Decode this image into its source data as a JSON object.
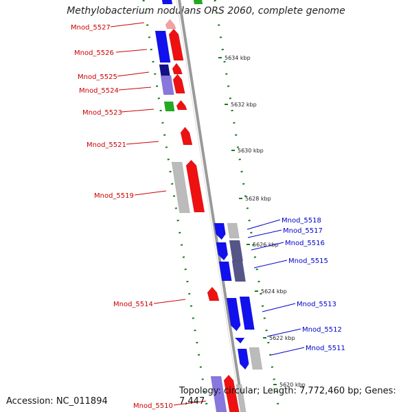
{
  "title": "Methylobacterium nodulans ORS 2060, complete genome",
  "accession": "Accession: NC_011894",
  "topology": "Topology: circular; Length: 7,772,460 bp; Genes: 7,447",
  "colors": {
    "forward_label": "#cc0000",
    "reverse_label": "#0000cc",
    "red": "#ee1111",
    "blue": "#1111ee",
    "gray": "#bbbbbb",
    "green": "#22aa22",
    "lavender": "#8877dd",
    "navy": "#111188",
    "slate": "#555588",
    "pink": "#f4a0a0",
    "dotted_ring": "#1a7a1a",
    "backbone": "#999999"
  },
  "scale_labels": [
    "5634 kbp",
    "5632 kbp",
    "5630 kbp",
    "5628 kbp",
    "5626 kbp",
    "5624 kbp",
    "5622 kbp",
    "5620 kbp"
  ],
  "forward_genes": [
    {
      "name": "Mnod_5527",
      "color": "pink"
    },
    {
      "name": "Mnod_5526",
      "color": "red"
    },
    {
      "name": "Mnod_5525",
      "color": "red"
    },
    {
      "name": "Mnod_5524",
      "color": "red"
    },
    {
      "name": "Mnod_5523",
      "color": "red"
    },
    {
      "name": "Mnod_5521",
      "color": "red"
    },
    {
      "name": "Mnod_5519",
      "color": "red"
    },
    {
      "name": "Mnod_5514",
      "color": "red"
    },
    {
      "name": "Mnod_5510",
      "color": "red"
    }
  ],
  "reverse_genes": [
    {
      "name": "Mnod_5518",
      "color": "gray"
    },
    {
      "name": "Mnod_5517",
      "color": "blue"
    },
    {
      "name": "Mnod_5516",
      "color": "slate"
    },
    {
      "name": "Mnod_5515",
      "color": "blue"
    },
    {
      "name": "Mnod_5513",
      "color": "blue"
    },
    {
      "name": "Mnod_5512",
      "color": "blue"
    },
    {
      "name": "Mnod_5511",
      "color": "gray"
    }
  ]
}
